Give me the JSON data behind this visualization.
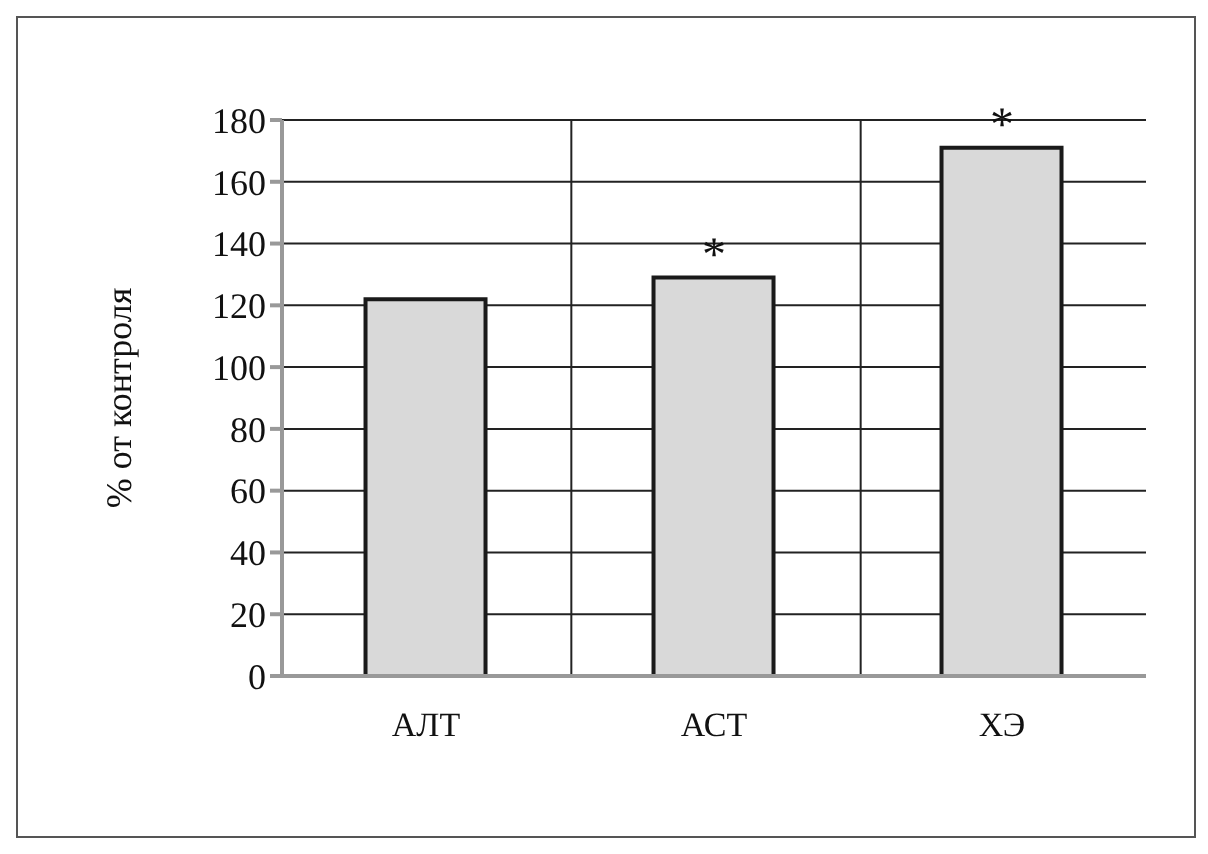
{
  "chart_data": {
    "type": "bar",
    "ylabel": "% от контроля",
    "categories": [
      "АЛТ",
      "АСТ",
      "ХЭ"
    ],
    "values": [
      122,
      129,
      171
    ],
    "color": "#d9d9d9",
    "ylim": [
      0,
      180
    ],
    "yticks": [
      0,
      20,
      40,
      60,
      80,
      100,
      120,
      140,
      160,
      180
    ],
    "grid": true,
    "annotations": [
      {
        "text": "*",
        "x": "АСТ",
        "y": 129
      },
      {
        "text": "*",
        "x": "ХЭ",
        "y": 171
      }
    ]
  }
}
